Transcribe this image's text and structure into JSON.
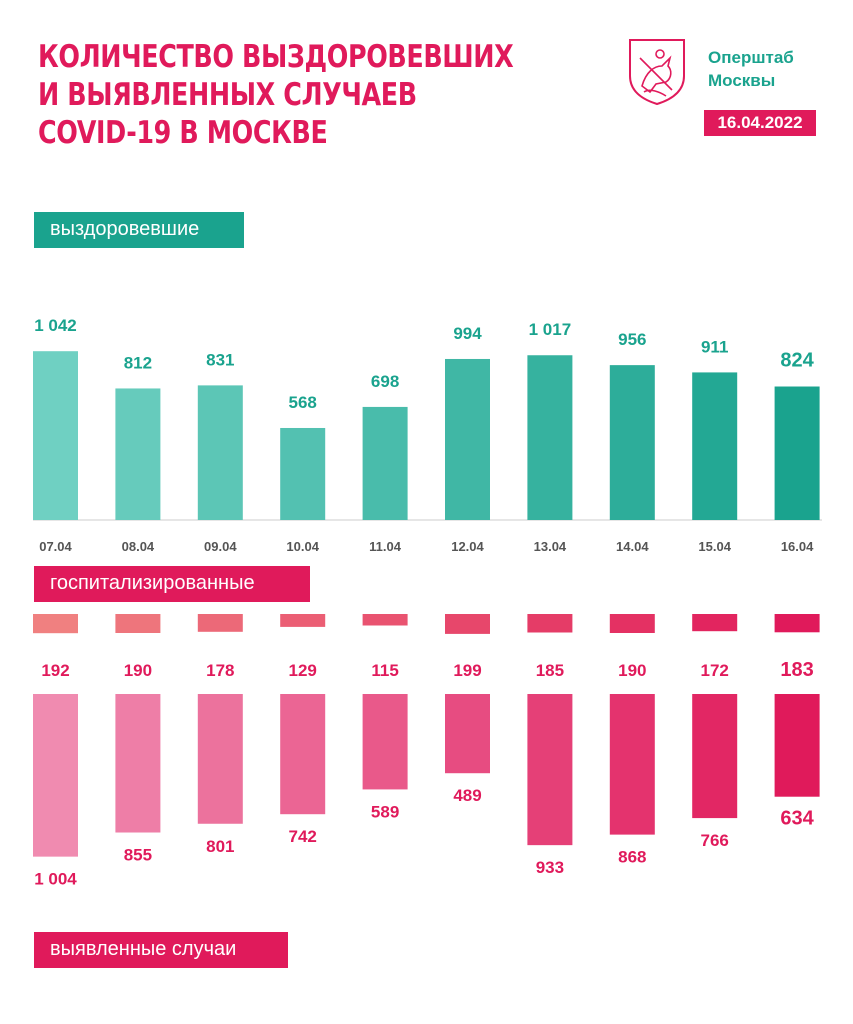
{
  "header": {
    "title_lines": [
      "Количество выздоровевших",
      "и выявленных случаев",
      "COVID-19 в Москве"
    ],
    "brand_lines": [
      "Оперштаб",
      "Москвы"
    ],
    "date": "16.04.2022",
    "emblem_icon": "moscow-coat-of-arms-icon"
  },
  "labels": {
    "recovered": "выздоровевшие",
    "hospitalized": "госпитализированные",
    "cases": "выявленные случаи"
  },
  "colors": {
    "teal": "#1aa38e",
    "pink": "#e01a5b",
    "grid": "#cccccc",
    "date_text": "#555555"
  },
  "chart_data": [
    {
      "type": "bar",
      "categories": [
        "07.04",
        "08.04",
        "09.04",
        "10.04",
        "11.04",
        "12.04",
        "13.04",
        "14.04",
        "15.04",
        "16.04"
      ],
      "series": [
        {
          "name": "выздоровевшие",
          "values": [
            1042,
            812,
            831,
            568,
            698,
            994,
            1017,
            956,
            911,
            824
          ],
          "labels": [
            "1 042",
            "812",
            "831",
            "568",
            "698",
            "994",
            "1 017",
            "956",
            "911",
            "824"
          ]
        }
      ]
    },
    {
      "type": "bar",
      "categories": [
        "07.04",
        "08.04",
        "09.04",
        "10.04",
        "11.04",
        "12.04",
        "13.04",
        "14.04",
        "15.04",
        "16.04"
      ],
      "series": [
        {
          "name": "госпитализированные",
          "values": [
            192,
            190,
            178,
            129,
            115,
            199,
            185,
            190,
            172,
            183
          ],
          "labels": [
            "192",
            "190",
            "178",
            "129",
            "115",
            "199",
            "185",
            "190",
            "172",
            "183"
          ]
        }
      ]
    },
    {
      "type": "bar",
      "categories": [
        "07.04",
        "08.04",
        "09.04",
        "10.04",
        "11.04",
        "12.04",
        "13.04",
        "14.04",
        "15.04",
        "16.04"
      ],
      "series": [
        {
          "name": "выявленные случаи",
          "values": [
            1004,
            855,
            801,
            742,
            589,
            489,
            933,
            868,
            766,
            634
          ],
          "labels": [
            "1 004",
            "855",
            "801",
            "742",
            "589",
            "489",
            "933",
            "868",
            "766",
            "634"
          ]
        }
      ]
    }
  ]
}
